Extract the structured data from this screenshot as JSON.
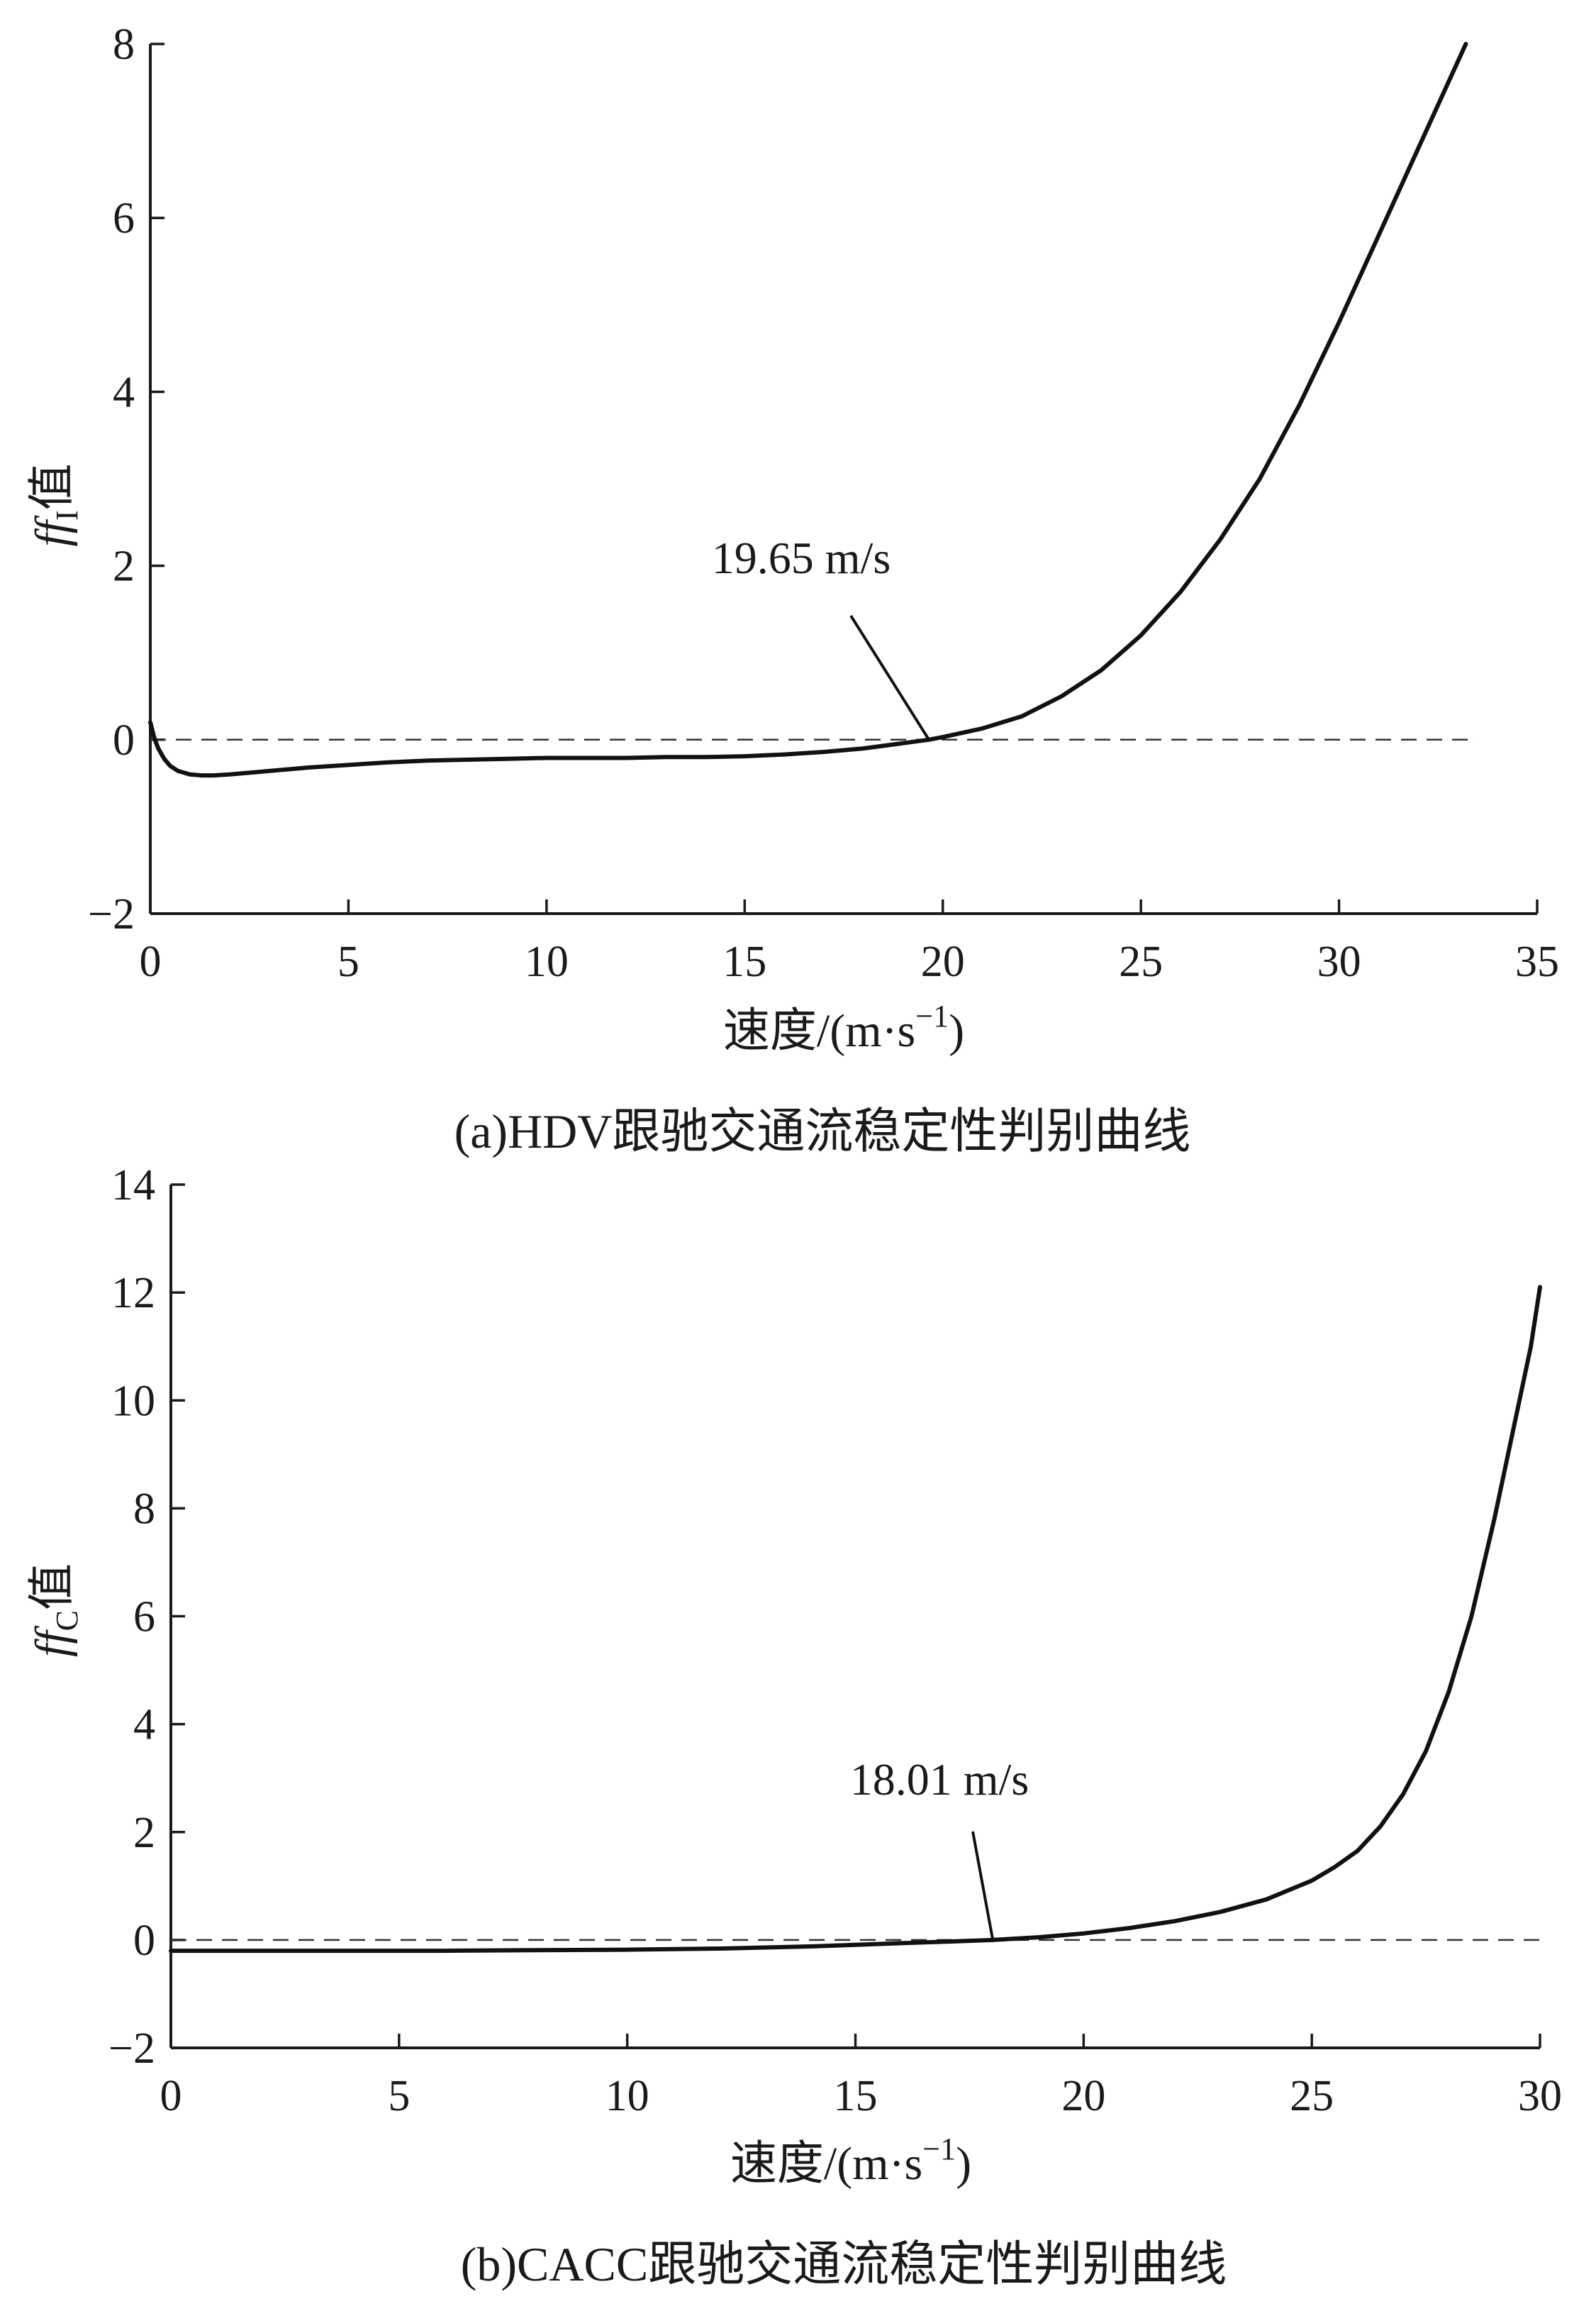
{
  "chart_data": [
    {
      "type": "line",
      "caption": "(a)HDV跟驰交通流稳定性判别曲线",
      "xlabel": "速度/(m·s",
      "xlabel_sup": "−1",
      "xlabel_close": ")",
      "ylabel_italic": "ff",
      "ylabel_sub": "I",
      "ylabel_rest": "值",
      "xlim": [
        0,
        35
      ],
      "ylim": [
        -2,
        8
      ],
      "xticks": [
        0,
        5,
        10,
        15,
        20,
        25,
        30,
        35
      ],
      "xtick_labels": [
        "0",
        "5",
        "10",
        "15",
        "20",
        "25",
        "30",
        "35"
      ],
      "yticks": [
        -2,
        0,
        2,
        4,
        6,
        8
      ],
      "ytick_labels": [
        "−2",
        "0",
        "2",
        "4",
        "6",
        "8"
      ],
      "reference_line": {
        "y": 0,
        "x_start": 0,
        "x_end": 33.5,
        "style": "dashed"
      },
      "annotation": {
        "text": "19.65 m/s",
        "x": 19.65,
        "y": 0
      },
      "series": [
        {
          "x": [
            0,
            0.1,
            0.2,
            0.35,
            0.5,
            0.7,
            1.0,
            1.3,
            1.6,
            2.0,
            2.5,
            3.0,
            4.0,
            5.0,
            6.0,
            7.0,
            8.0,
            9.0,
            10.0,
            11.0,
            12.0,
            13.0,
            14.0,
            15.0,
            16.0,
            17.0,
            18.0,
            19.0,
            19.65,
            20.0,
            21.0,
            22.0,
            23.0,
            24.0,
            25.0,
            26.0,
            27.0,
            28.0,
            29.0,
            30.0,
            31.0,
            32.0,
            33.2
          ],
          "y": [
            0.2,
            0.02,
            -0.1,
            -0.22,
            -0.3,
            -0.36,
            -0.4,
            -0.41,
            -0.41,
            -0.4,
            -0.38,
            -0.36,
            -0.32,
            -0.29,
            -0.26,
            -0.24,
            -0.23,
            -0.22,
            -0.21,
            -0.21,
            -0.21,
            -0.2,
            -0.2,
            -0.19,
            -0.17,
            -0.14,
            -0.1,
            -0.04,
            0.0,
            0.03,
            0.13,
            0.27,
            0.5,
            0.8,
            1.2,
            1.7,
            2.3,
            3.0,
            3.85,
            4.8,
            5.8,
            6.8,
            8.0
          ]
        }
      ]
    },
    {
      "type": "line",
      "caption": "(b)CACC跟驰交通流稳定性判别曲线",
      "xlabel": "速度/(m·s",
      "xlabel_sup": "−1",
      "xlabel_close": ")",
      "ylabel_italic": "ff",
      "ylabel_sub": "C",
      "ylabel_rest": "值",
      "xlim": [
        0,
        30
      ],
      "ylim": [
        -2,
        14
      ],
      "xticks": [
        0,
        5,
        10,
        15,
        20,
        25,
        30
      ],
      "xtick_labels": [
        "0",
        "5",
        "10",
        "15",
        "20",
        "25",
        "30"
      ],
      "yticks": [
        -2,
        0,
        2,
        4,
        6,
        8,
        10,
        12,
        14
      ],
      "ytick_labels": [
        "−2",
        "0",
        "2",
        "4",
        "6",
        "8",
        "10",
        "12",
        "14"
      ],
      "reference_line": {
        "y": 0,
        "x_start": 0,
        "x_end": 30,
        "style": "dashed"
      },
      "annotation": {
        "text": "18.01 m/s",
        "x": 18.01,
        "y": 0
      },
      "series": [
        {
          "x": [
            0,
            2,
            4,
            6,
            8,
            10,
            12,
            14,
            15,
            16,
            17,
            18.01,
            19,
            20,
            21,
            22,
            23,
            24,
            25,
            25.5,
            26,
            26.5,
            27,
            27.5,
            28,
            28.5,
            29,
            29.5,
            29.8,
            30
          ],
          "y": [
            -0.2,
            -0.2,
            -0.2,
            -0.2,
            -0.19,
            -0.18,
            -0.16,
            -0.12,
            -0.09,
            -0.06,
            -0.03,
            0.0,
            0.05,
            0.12,
            0.22,
            0.35,
            0.52,
            0.75,
            1.1,
            1.35,
            1.65,
            2.1,
            2.7,
            3.5,
            4.6,
            6.0,
            7.8,
            9.8,
            11.0,
            12.1
          ]
        }
      ]
    }
  ]
}
